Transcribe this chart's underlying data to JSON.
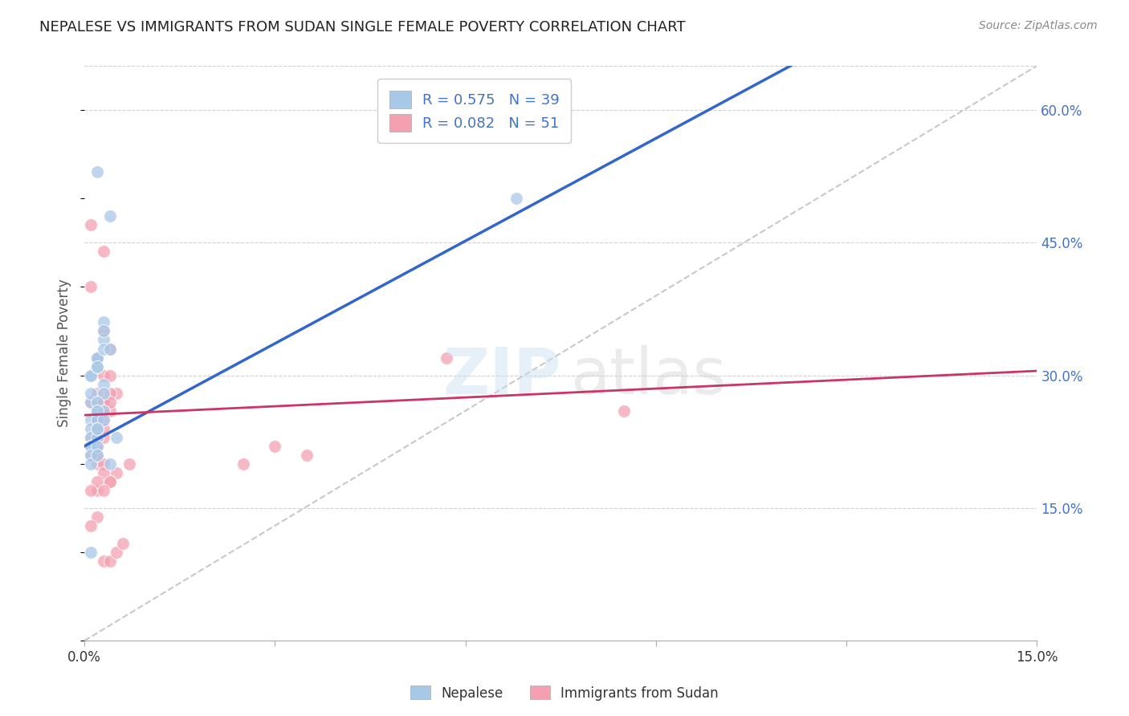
{
  "title": "NEPALESE VS IMMIGRANTS FROM SUDAN SINGLE FEMALE POVERTY CORRELATION CHART",
  "source": "Source: ZipAtlas.com",
  "ylabel": "Single Female Poverty",
  "xlim": [
    0.0,
    0.15
  ],
  "ylim": [
    0.0,
    0.65
  ],
  "yticks_right": [
    0.15,
    0.3,
    0.45,
    0.6
  ],
  "ytick_right_labels": [
    "15.0%",
    "30.0%",
    "45.0%",
    "60.0%"
  ],
  "nepalese_R": 0.575,
  "nepalese_N": 39,
  "sudan_R": 0.082,
  "sudan_N": 51,
  "nepalese_color": "#a8c8e8",
  "sudan_color": "#f4a0b0",
  "nepalese_line_color": "#3366cc",
  "sudan_line_color": "#cc3366",
  "diagonal_color": "#bbbbbb",
  "background_color": "#ffffff",
  "grid_color": "#cccccc",
  "nepalese_x": [
    0.002,
    0.004,
    0.003,
    0.001,
    0.002,
    0.003,
    0.001,
    0.002,
    0.003,
    0.002,
    0.001,
    0.003,
    0.002,
    0.001,
    0.002,
    0.003,
    0.004,
    0.003,
    0.002,
    0.003,
    0.001,
    0.002,
    0.001,
    0.002,
    0.001,
    0.002,
    0.001,
    0.002,
    0.001,
    0.003,
    0.002,
    0.001,
    0.002,
    0.001,
    0.005,
    0.002,
    0.068,
    0.001,
    0.004
  ],
  "nepalese_y": [
    0.53,
    0.48,
    0.36,
    0.3,
    0.32,
    0.34,
    0.3,
    0.31,
    0.35,
    0.32,
    0.27,
    0.33,
    0.31,
    0.28,
    0.26,
    0.29,
    0.33,
    0.28,
    0.27,
    0.26,
    0.25,
    0.26,
    0.24,
    0.25,
    0.23,
    0.24,
    0.22,
    0.23,
    0.22,
    0.25,
    0.24,
    0.21,
    0.22,
    0.2,
    0.23,
    0.21,
    0.5,
    0.1,
    0.2
  ],
  "sudan_x": [
    0.001,
    0.003,
    0.002,
    0.004,
    0.001,
    0.003,
    0.002,
    0.003,
    0.002,
    0.001,
    0.004,
    0.003,
    0.002,
    0.005,
    0.003,
    0.004,
    0.003,
    0.002,
    0.004,
    0.001,
    0.002,
    0.003,
    0.002,
    0.001,
    0.003,
    0.004,
    0.002,
    0.003,
    0.001,
    0.002,
    0.003,
    0.005,
    0.004,
    0.002,
    0.003,
    0.002,
    0.001,
    0.007,
    0.004,
    0.003,
    0.002,
    0.001,
    0.03,
    0.025,
    0.035,
    0.057,
    0.085,
    0.003,
    0.004,
    0.005,
    0.006
  ],
  "sudan_y": [
    0.47,
    0.44,
    0.26,
    0.33,
    0.4,
    0.3,
    0.32,
    0.35,
    0.28,
    0.27,
    0.26,
    0.27,
    0.25,
    0.28,
    0.26,
    0.3,
    0.27,
    0.25,
    0.28,
    0.23,
    0.24,
    0.25,
    0.22,
    0.21,
    0.23,
    0.27,
    0.2,
    0.24,
    0.22,
    0.21,
    0.2,
    0.19,
    0.18,
    0.17,
    0.19,
    0.18,
    0.17,
    0.2,
    0.18,
    0.17,
    0.14,
    0.13,
    0.22,
    0.2,
    0.21,
    0.32,
    0.26,
    0.09,
    0.09,
    0.1,
    0.11
  ],
  "legend_labels": [
    "Nepalese",
    "Immigrants from Sudan"
  ],
  "title_color": "#222222",
  "right_tick_color": "#4472c4"
}
